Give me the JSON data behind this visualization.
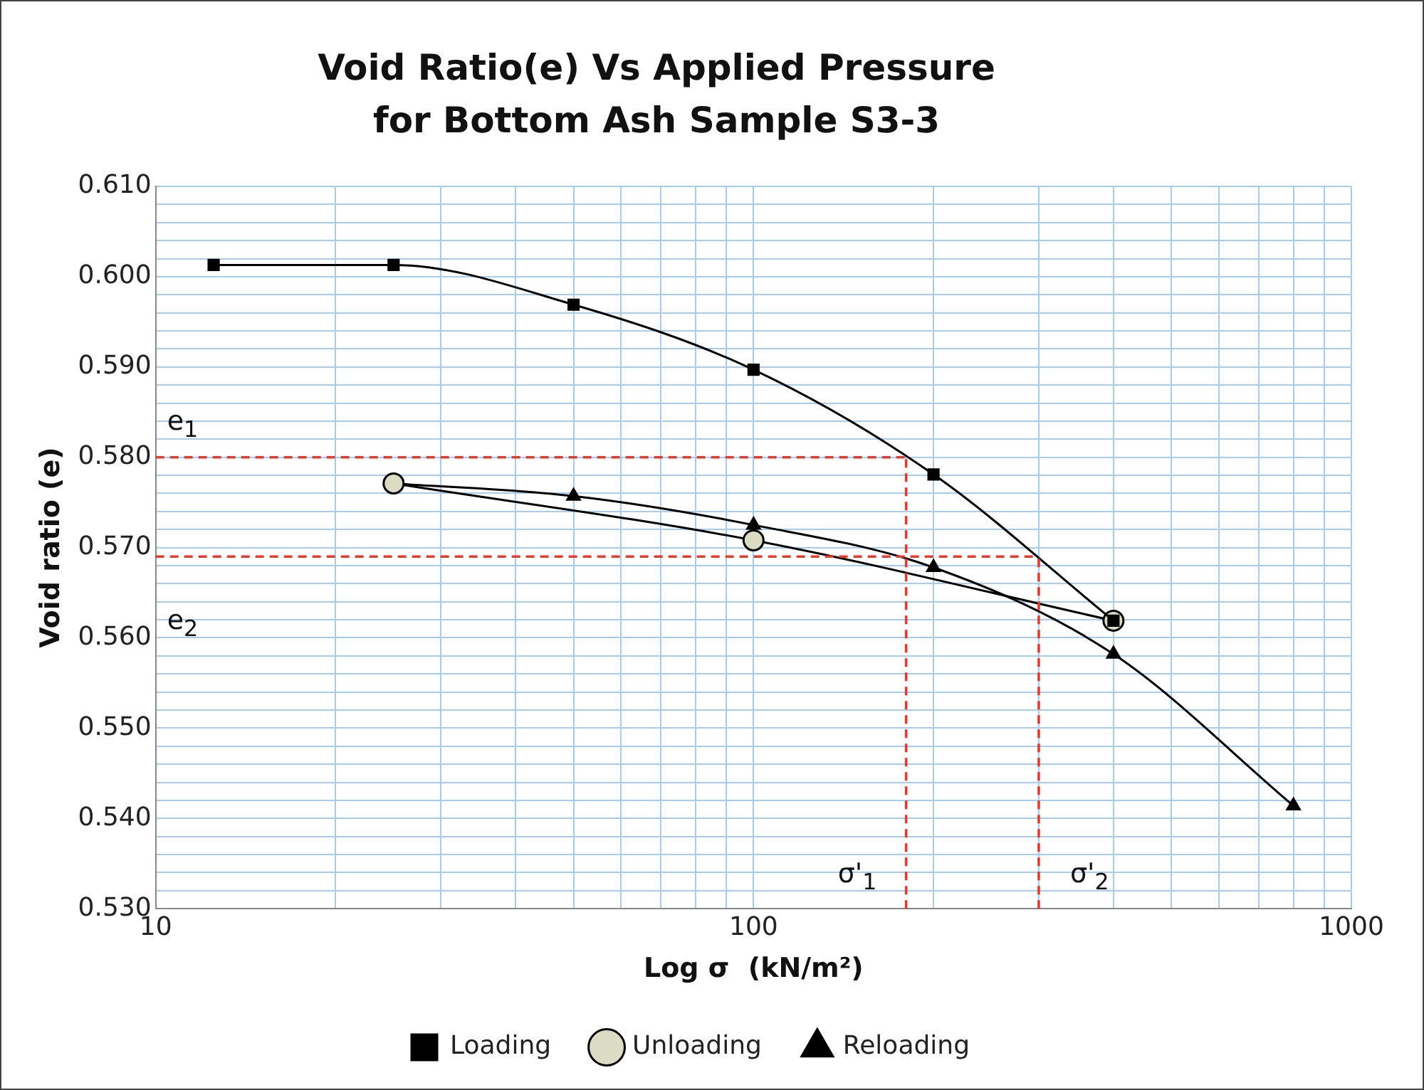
{
  "chart_data": {
    "type": "line",
    "title": "Void Ratio(e) Vs  Applied Pressure for Bottom Ash Sample S3-3",
    "xlabel": "Log σ  (kN/m²)",
    "ylabel": "Void ratio (e)",
    "log": "x",
    "grid": true,
    "legend": "bottom",
    "line_style": "solid",
    "xlim": [
      10,
      1000
    ],
    "ylim": [
      0.53,
      0.61
    ],
    "xticks": [
      10,
      {
        "value": 20,
        "label": null
      },
      {
        "value": 30,
        "label": null
      },
      {
        "value": 40,
        "label": null
      },
      {
        "value": 50,
        "label": null
      },
      {
        "value": 60,
        "label": null
      },
      {
        "value": 70,
        "label": null
      },
      {
        "value": 80,
        "label": null
      },
      {
        "value": 90,
        "label": null
      },
      100,
      {
        "value": 200,
        "label": null
      },
      {
        "value": 300,
        "label": null
      },
      {
        "value": 400,
        "label": null
      },
      {
        "value": 500,
        "label": null
      },
      {
        "value": 600,
        "label": null
      },
      {
        "value": 700,
        "label": null
      },
      {
        "value": 800,
        "label": null
      },
      {
        "value": 900,
        "label": null
      },
      1000
    ],
    "yticks": [
      {
        "value": 0.53,
        "label": "0.530"
      },
      {
        "value": 0.532,
        "label": null
      },
      {
        "value": 0.534,
        "label": null
      },
      {
        "value": 0.536,
        "label": null
      },
      {
        "value": 0.538,
        "label": null
      },
      {
        "value": 0.54,
        "label": "0.540"
      },
      {
        "value": 0.542,
        "label": null
      },
      {
        "value": 0.544,
        "label": null
      },
      {
        "value": 0.546,
        "label": null
      },
      {
        "value": 0.548,
        "label": null
      },
      {
        "value": 0.55,
        "label": "0.550"
      },
      {
        "value": 0.552,
        "label": null
      },
      {
        "value": 0.554,
        "label": null
      },
      {
        "value": 0.556,
        "label": null
      },
      {
        "value": 0.558,
        "label": null
      },
      {
        "value": 0.56,
        "label": "0.560"
      },
      {
        "value": 0.562,
        "label": null
      },
      {
        "value": 0.564,
        "label": null
      },
      {
        "value": 0.566,
        "label": null
      },
      {
        "value": 0.568,
        "label": null
      },
      {
        "value": 0.57,
        "label": "0.570"
      },
      {
        "value": 0.572,
        "label": null
      },
      {
        "value": 0.574,
        "label": null
      },
      {
        "value": 0.576,
        "label": null
      },
      {
        "value": 0.578,
        "label": null
      },
      {
        "value": 0.58,
        "label": "0.580"
      },
      {
        "value": 0.582,
        "label": null
      },
      {
        "value": 0.584,
        "label": null
      },
      {
        "value": 0.586,
        "label": null
      },
      {
        "value": 0.588,
        "label": null
      },
      {
        "value": 0.59,
        "label": "0.590"
      },
      {
        "value": 0.592,
        "label": null
      },
      {
        "value": 0.594,
        "label": null
      },
      {
        "value": 0.596,
        "label": null
      },
      {
        "value": 0.598,
        "label": null
      },
      {
        "value": 0.6,
        "label": "0.600"
      },
      {
        "value": 0.602,
        "label": null
      },
      {
        "value": 0.604,
        "label": null
      },
      {
        "value": 0.606,
        "label": null
      },
      {
        "value": 0.608,
        "label": null
      },
      {
        "value": 0.61,
        "label": "0.610"
      }
    ],
    "series": [
      {
        "name": "Loading",
        "color": "#000000",
        "marker": "square",
        "x": [
          12.5,
          25,
          50,
          100,
          200,
          400
        ],
        "values": [
          0.6013,
          0.6013,
          0.5969,
          0.5897,
          0.5781,
          0.5619
        ]
      },
      {
        "name": "Unloading",
        "color": "#000000",
        "marker": "circle",
        "x": [
          25,
          100,
          400
        ],
        "values": [
          0.5771,
          0.5708,
          0.5619
        ]
      },
      {
        "name": "Reloading",
        "color": "#000000",
        "marker": "triangle",
        "x": [
          25,
          50,
          100,
          200,
          400,
          800
        ],
        "values": [
          0.5771,
          0.5757,
          0.5725,
          0.5678,
          0.5582,
          0.5414
        ]
      }
    ],
    "ref_lines": [
      {
        "axis": "y",
        "value": 0.58,
        "label": "e$_{1}$",
        "color": "#e03c31",
        "line_style": "dashed"
      },
      {
        "axis": "y",
        "value": 0.569,
        "label": "e$_{2}$",
        "color": "#e03c31",
        "line_style": "dashed"
      },
      {
        "axis": "x",
        "value": 180,
        "label": "σ'$_{1}$",
        "color": "#e03c31",
        "line_style": "dashed"
      },
      {
        "axis": "x",
        "value": 300,
        "label": "σ'$_{2}$",
        "color": "#e03c31",
        "line_style": "dashed"
      }
    ]
  }
}
